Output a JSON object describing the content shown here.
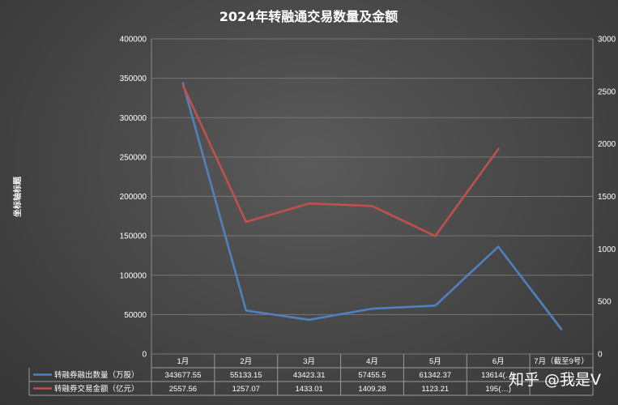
{
  "chart_data": {
    "type": "line",
    "title": "2024年转融通交易数量及金额",
    "ylabel": "坐标轴标题",
    "categories": [
      "1月",
      "2月",
      "3月",
      "4月",
      "5月",
      "6月",
      "7月（截至9号）"
    ],
    "series": [
      {
        "name": "转融券融出数量（万股）",
        "axis": "left",
        "color": "#4f81bd",
        "values": [
          343677.55,
          55133.15,
          43423.31,
          57455.5,
          61342.37,
          136140,
          31500
        ],
        "labels": [
          "343677.55",
          "55133.15",
          "43423.31",
          "57455.5",
          "61342.37",
          "13614(…)",
          ""
        ]
      },
      {
        "name": "转融券交易金额（亿元）",
        "axis": "right",
        "color": "#c0504d",
        "values": [
          2557.56,
          1257.07,
          1433.01,
          1409.28,
          1123.21,
          1950,
          null
        ],
        "labels": [
          "2557.56",
          "1257.07",
          "1433.01",
          "1409.28",
          "1123.21",
          "195(…)",
          ""
        ]
      }
    ],
    "left_axis": {
      "min": 0,
      "max": 400000,
      "step": 50000,
      "ticks": [
        "0",
        "50000",
        "100000",
        "150000",
        "200000",
        "250000",
        "300000",
        "350000",
        "400000"
      ]
    },
    "right_axis": {
      "min": 0,
      "max": 3000,
      "step": 500,
      "ticks": [
        "0",
        "500",
        "1000",
        "1500",
        "2000",
        "2500",
        "3000"
      ]
    },
    "grid": true,
    "legend": "data-table"
  },
  "watermark": "知乎 @我是V"
}
